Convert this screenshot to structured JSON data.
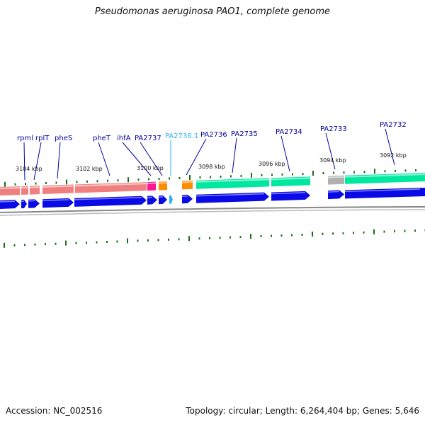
{
  "title": "Pseudomonas aeruginosa PAO1, complete genome",
  "footer": {
    "accession": "Accession: NC_002516",
    "stats": "Topology: circular; Length: 6,264,404 bp; Genes: 5,646"
  },
  "colors": {
    "forward_arrow": "#0a0ae6",
    "rrna_region": "#f08080",
    "trna": "#ff1493",
    "orange": "#ff8c00",
    "teal": "#00e8a0",
    "gray": "#b0b0b0",
    "tick": "#1a6e1a",
    "backbone": "#888888",
    "label": "#0000a0",
    "label_highlight": "#29b6f6"
  },
  "scale_labels": [
    "3104 kbp",
    "3102 kbp",
    "3100 kbp",
    "3098 kbp",
    "3096 kbp",
    "3094 kbp",
    "3092 kbp"
  ],
  "gene_labels": [
    {
      "text": "rpml",
      "highlight": false
    },
    {
      "text": "rplT",
      "highlight": false
    },
    {
      "text": "pheS",
      "highlight": false
    },
    {
      "text": "pheT",
      "highlight": false
    },
    {
      "text": "ihfA",
      "highlight": false
    },
    {
      "text": "PA2737",
      "highlight": false
    },
    {
      "text": "PA2736.1",
      "highlight": true
    },
    {
      "text": "PA2736",
      "highlight": false
    },
    {
      "text": "PA2735",
      "highlight": false
    },
    {
      "text": "PA2734",
      "highlight": false
    },
    {
      "text": "PA2733",
      "highlight": false
    },
    {
      "text": "PA2732",
      "highlight": false
    }
  ]
}
